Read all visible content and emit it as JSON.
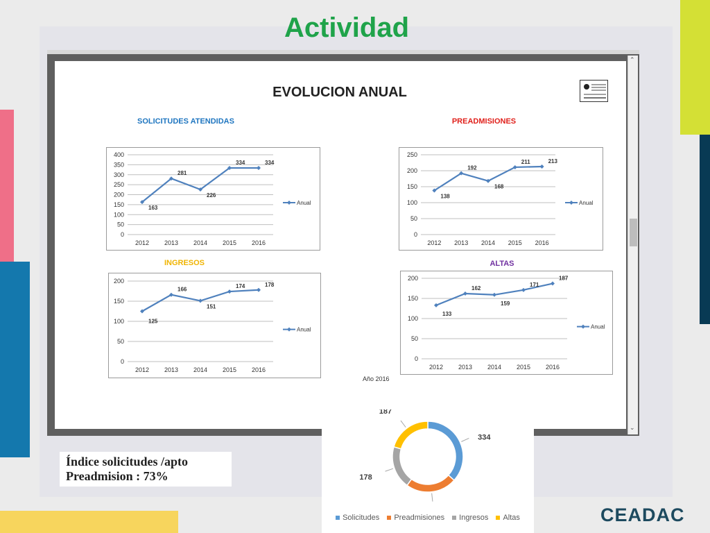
{
  "slide": {
    "title": "Actividad",
    "brand": "CEADAC",
    "index_line1": "Índice solicitudes /apto",
    "index_line2": "Preadmision : 73%",
    "colors": {
      "title_green": "#1fa34a",
      "pink": "#ef6f88",
      "blue": "#1478ad",
      "lime": "#d4e035",
      "navy": "#083a54",
      "yellow": "#f7d55d",
      "line_blue": "#4f81bd"
    }
  },
  "sheet": {
    "title": "EVOLUCION ANUAL",
    "year_label": "Año 2016",
    "logo_icon": "institution-logo"
  },
  "chart_data": [
    {
      "type": "line",
      "title": "SOLICITUDES ATENDIDAS",
      "title_color": "#1f76c0",
      "x": [
        "2012",
        "2013",
        "2014",
        "2015",
        "2016"
      ],
      "series": [
        {
          "name": "Anual",
          "values": [
            163,
            281,
            226,
            334,
            334
          ]
        }
      ],
      "ylim": [
        0,
        400
      ],
      "yticks": [
        0,
        50,
        100,
        150,
        200,
        250,
        300,
        350,
        400
      ],
      "grid": true,
      "legend": "right"
    },
    {
      "type": "line",
      "title": "PREADMISIONES",
      "title_color": "#e0201b",
      "x": [
        "2012",
        "2013",
        "2014",
        "2015",
        "2016"
      ],
      "series": [
        {
          "name": "Anual",
          "values": [
            138,
            192,
            168,
            211,
            213
          ]
        }
      ],
      "ylim": [
        0,
        250
      ],
      "yticks": [
        0,
        50,
        100,
        150,
        200,
        250
      ],
      "grid": true,
      "legend": "right"
    },
    {
      "type": "line",
      "title": "INGRESOS",
      "title_color": "#f0b400",
      "x": [
        "2012",
        "2013",
        "2014",
        "2015",
        "2016"
      ],
      "series": [
        {
          "name": "Anual",
          "values": [
            125,
            166,
            151,
            174,
            178
          ]
        }
      ],
      "ylim": [
        0,
        200
      ],
      "yticks": [
        0,
        50,
        100,
        150,
        200
      ],
      "grid": true,
      "legend": "right"
    },
    {
      "type": "line",
      "title": "ALTAS",
      "title_color": "#7030a0",
      "x": [
        "2012",
        "2013",
        "2014",
        "2015",
        "2016"
      ],
      "series": [
        {
          "name": "Anual",
          "values": [
            133,
            162,
            159,
            171,
            187
          ]
        }
      ],
      "ylim": [
        0,
        200
      ],
      "yticks": [
        0,
        50,
        100,
        150,
        200
      ],
      "grid": true,
      "legend": "right"
    },
    {
      "type": "pie",
      "title": "",
      "labels": [
        "Solicitudes",
        "Preadmisiones",
        "Ingresos",
        "Altas"
      ],
      "values": [
        334,
        213,
        178,
        187
      ],
      "colors": [
        "#5b9bd5",
        "#ed7d31",
        "#a5a5a5",
        "#ffc000"
      ],
      "donut": true,
      "legend": "bottom"
    }
  ]
}
